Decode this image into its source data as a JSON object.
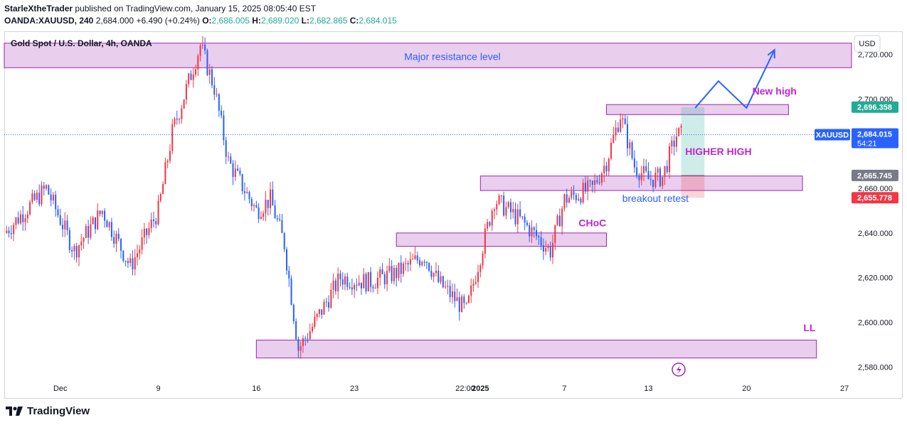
{
  "header": {
    "author": "StarleXtheTrader",
    "published_text": "published on TradingView.com, January 15, 2025 08:05:40 EST",
    "symbol": "OANDA:XAUUSD, 240",
    "last": "2,684.000",
    "change": "+6.490 (+0.24%)",
    "o_label": "O:",
    "o": "2,686.005",
    "h_label": "H:",
    "h": "2,689.020",
    "l_label": "L:",
    "l": "2,682.865",
    "c_label": "C:",
    "c": "2,684.015"
  },
  "legend_title": "Gold Spot / U.S. Dollar, 4h, OANDA",
  "currency_button": "USD",
  "footer_brand": "TradingView",
  "colors": {
    "up": "#f23645",
    "down": "#2962ff",
    "zone": "#e1bee7",
    "zone_border": "#9c27b0",
    "accent": "#2962ff"
  },
  "chart_data": {
    "type": "candlestick",
    "ylim": [
      2575,
      2730
    ],
    "yticks": [
      2580,
      2600,
      2620,
      2640,
      2660,
      2700,
      2720
    ],
    "ytick_labels": [
      "2,580.000",
      "2,600.000",
      "2,620.000",
      "2,640.000",
      "2,660.000",
      "2,700.000",
      "2,720.000"
    ],
    "xtick_labels": [
      "Dec",
      "9",
      "16",
      "23",
      "22:00",
      "2025",
      "7",
      "13",
      "20",
      "27"
    ],
    "x_date_ticks": [
      "2024-12-02",
      "2024-12-09",
      "2024-12-16",
      "2024-12-23",
      "2024-12-30T22:00",
      "2025-01-01",
      "2025-01-07",
      "2025-01-13",
      "2025-01-20",
      "2025-01-27"
    ],
    "x_range": [
      "2024-11-28",
      "2025-01-27T12:00"
    ],
    "last_date": "2025-01-15T08:00",
    "key_points": [
      {
        "date": "2024-11-28",
        "price": 2640
      },
      {
        "date": "2024-12-01",
        "price": 2660
      },
      {
        "date": "2024-12-03",
        "price": 2632
      },
      {
        "date": "2024-12-05",
        "price": 2650
      },
      {
        "date": "2024-12-07",
        "price": 2625
      },
      {
        "date": "2024-12-09",
        "price": 2650
      },
      {
        "date": "2024-12-10",
        "price": 2685
      },
      {
        "date": "2024-12-12",
        "price": 2724
      },
      {
        "date": "2024-12-13",
        "price": 2705
      },
      {
        "date": "2024-12-14",
        "price": 2672
      },
      {
        "date": "2024-12-16",
        "price": 2650
      },
      {
        "date": "2024-12-17",
        "price": 2655
      },
      {
        "date": "2024-12-18",
        "price": 2635
      },
      {
        "date": "2024-12-19",
        "price": 2588
      },
      {
        "date": "2024-12-20",
        "price": 2598
      },
      {
        "date": "2024-12-22",
        "price": 2620
      },
      {
        "date": "2024-12-24",
        "price": 2618
      },
      {
        "date": "2024-12-26",
        "price": 2622
      },
      {
        "date": "2024-12-28",
        "price": 2630
      },
      {
        "date": "2024-12-29",
        "price": 2618
      },
      {
        "date": "2024-12-31",
        "price": 2605
      },
      {
        "date": "2025-01-01",
        "price": 2630
      },
      {
        "date": "2025-01-02",
        "price": 2655
      },
      {
        "date": "2025-01-04",
        "price": 2645
      },
      {
        "date": "2025-01-06",
        "price": 2632
      },
      {
        "date": "2025-01-07",
        "price": 2655
      },
      {
        "date": "2025-01-09",
        "price": 2660
      },
      {
        "date": "2025-01-10",
        "price": 2672
      },
      {
        "date": "2025-01-11",
        "price": 2693
      },
      {
        "date": "2025-01-12",
        "price": 2670
      },
      {
        "date": "2025-01-13",
        "price": 2664
      },
      {
        "date": "2025-01-14",
        "price": 2665
      },
      {
        "date": "2025-01-15",
        "price": 2684
      }
    ],
    "price_labels": [
      {
        "text": "2,696.358",
        "value": 2696.358,
        "color": "#22ab94"
      },
      {
        "text": "2,684.015",
        "value": 2684.015,
        "color": "#2962ff",
        "countdown": "54:21",
        "tag": "XAUUSD"
      },
      {
        "text": "2,665.745",
        "value": 2665.745,
        "color": "#787b86"
      },
      {
        "text": "2,655.778",
        "value": 2655.778,
        "color": "#f23645"
      }
    ],
    "zones": [
      {
        "label": "Major resistance level",
        "y": [
          2714,
          2725
        ],
        "x": [
          "2024-11-28",
          "2025-01-27T12:00"
        ]
      },
      {
        "label": "",
        "y": [
          2693,
          2697.5
        ],
        "x": [
          "2025-01-10",
          "2025-01-23"
        ]
      },
      {
        "label": "",
        "y": [
          2659,
          2665.5
        ],
        "x": [
          "2025-01-01",
          "2025-01-24"
        ]
      },
      {
        "label": "",
        "y": [
          2634,
          2640
        ],
        "x": [
          "2024-12-26",
          "2025-01-10"
        ]
      },
      {
        "label": "",
        "y": [
          2584,
          2592
        ],
        "x": [
          "2024-12-16",
          "2025-01-25"
        ]
      }
    ],
    "position": {
      "x": [
        "2025-01-15T08:00",
        "2025-01-17"
      ],
      "entry": 2665.745,
      "target": 2696.358,
      "stop": 2655.778
    },
    "projection": [
      {
        "date": "2025-01-16T08:00",
        "price": 2696
      },
      {
        "date": "2025-01-18",
        "price": 2708
      },
      {
        "date": "2025-01-20",
        "price": 2696
      },
      {
        "date": "2025-01-22",
        "price": 2722
      }
    ],
    "annotations": [
      {
        "text": "Major resistance level",
        "date": "2024-12-30",
        "price": 2717.5,
        "color": "#2962ff"
      },
      {
        "text": "New high",
        "date": "2025-01-22",
        "price": 2702,
        "color": "#c026d3"
      },
      {
        "text": "HIGHER HIGH",
        "date": "2025-01-18",
        "price": 2675,
        "color": "#c026d3"
      },
      {
        "text": "breakout retest",
        "date": "2025-01-13T12:00",
        "price": 2654,
        "color": "#2962ff"
      },
      {
        "text": "CHoC",
        "date": "2025-01-09",
        "price": 2643,
        "color": "#c026d3"
      },
      {
        "text": "LL",
        "date": "2025-01-24T12:00",
        "price": 2596,
        "color": "#c026d3"
      }
    ]
  }
}
